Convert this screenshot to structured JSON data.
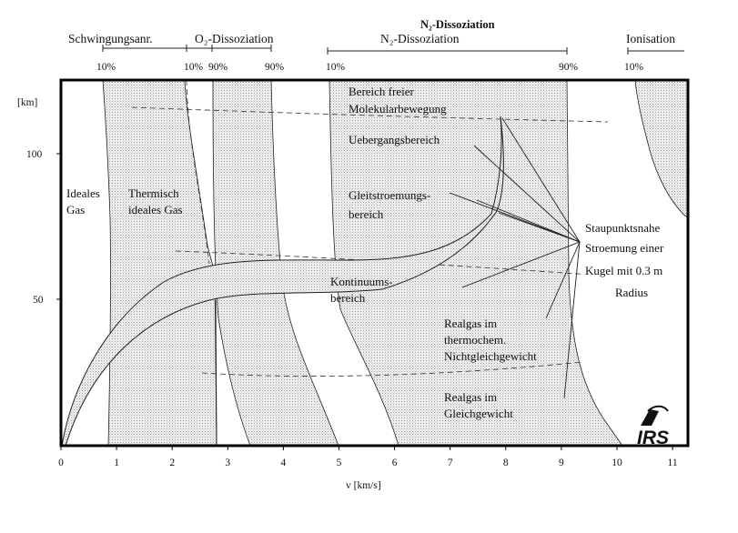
{
  "title": "N₂-Dissoziation",
  "axes": {
    "x_label": "v [km/s]",
    "y_label": "[km]",
    "x_ticks": [
      "0",
      "1",
      "2",
      "3",
      "4",
      "5",
      "6",
      "7",
      "8",
      "9",
      "10",
      "11"
    ],
    "y_ticks": [
      "100",
      "50"
    ]
  },
  "top_ranges": [
    {
      "name": "Schwingungsanr.",
      "start_label": "10%",
      "end_label": ""
    },
    {
      "name": "O₂-Dissoziation",
      "start_label": "10%",
      "mid_label": "90%",
      "end_label": "90%"
    },
    {
      "name": "N₂-Dissoziation",
      "start_label": "10%",
      "end_label": "90%"
    },
    {
      "name": "Ionisation",
      "start_label": "10%",
      "end_label": ""
    }
  ],
  "regions": {
    "ideal_gas": [
      "Ideales",
      "Gas"
    ],
    "thermal_ideal_gas": [
      "Thermisch",
      "ideales Gas"
    ],
    "free_molecular": [
      "Bereich freier",
      "Molekularbewegung"
    ],
    "transition": "Uebergangsbereich",
    "slip_flow": [
      "Gleitstroemungs-",
      "bereich"
    ],
    "continuum": [
      "Kontinuums-",
      "bereich"
    ],
    "nonequilibrium": [
      "Realgas im",
      "thermochem.",
      "Nichtgleichgewicht"
    ],
    "equilibrium": [
      "Realgas im",
      "Gleichgewicht"
    ]
  },
  "stagnation_note": [
    "Staupunktsnahe",
    "Stroemung einer",
    "Kugel mit 0.3 m",
    "Radius"
  ],
  "logo": "IRS"
}
